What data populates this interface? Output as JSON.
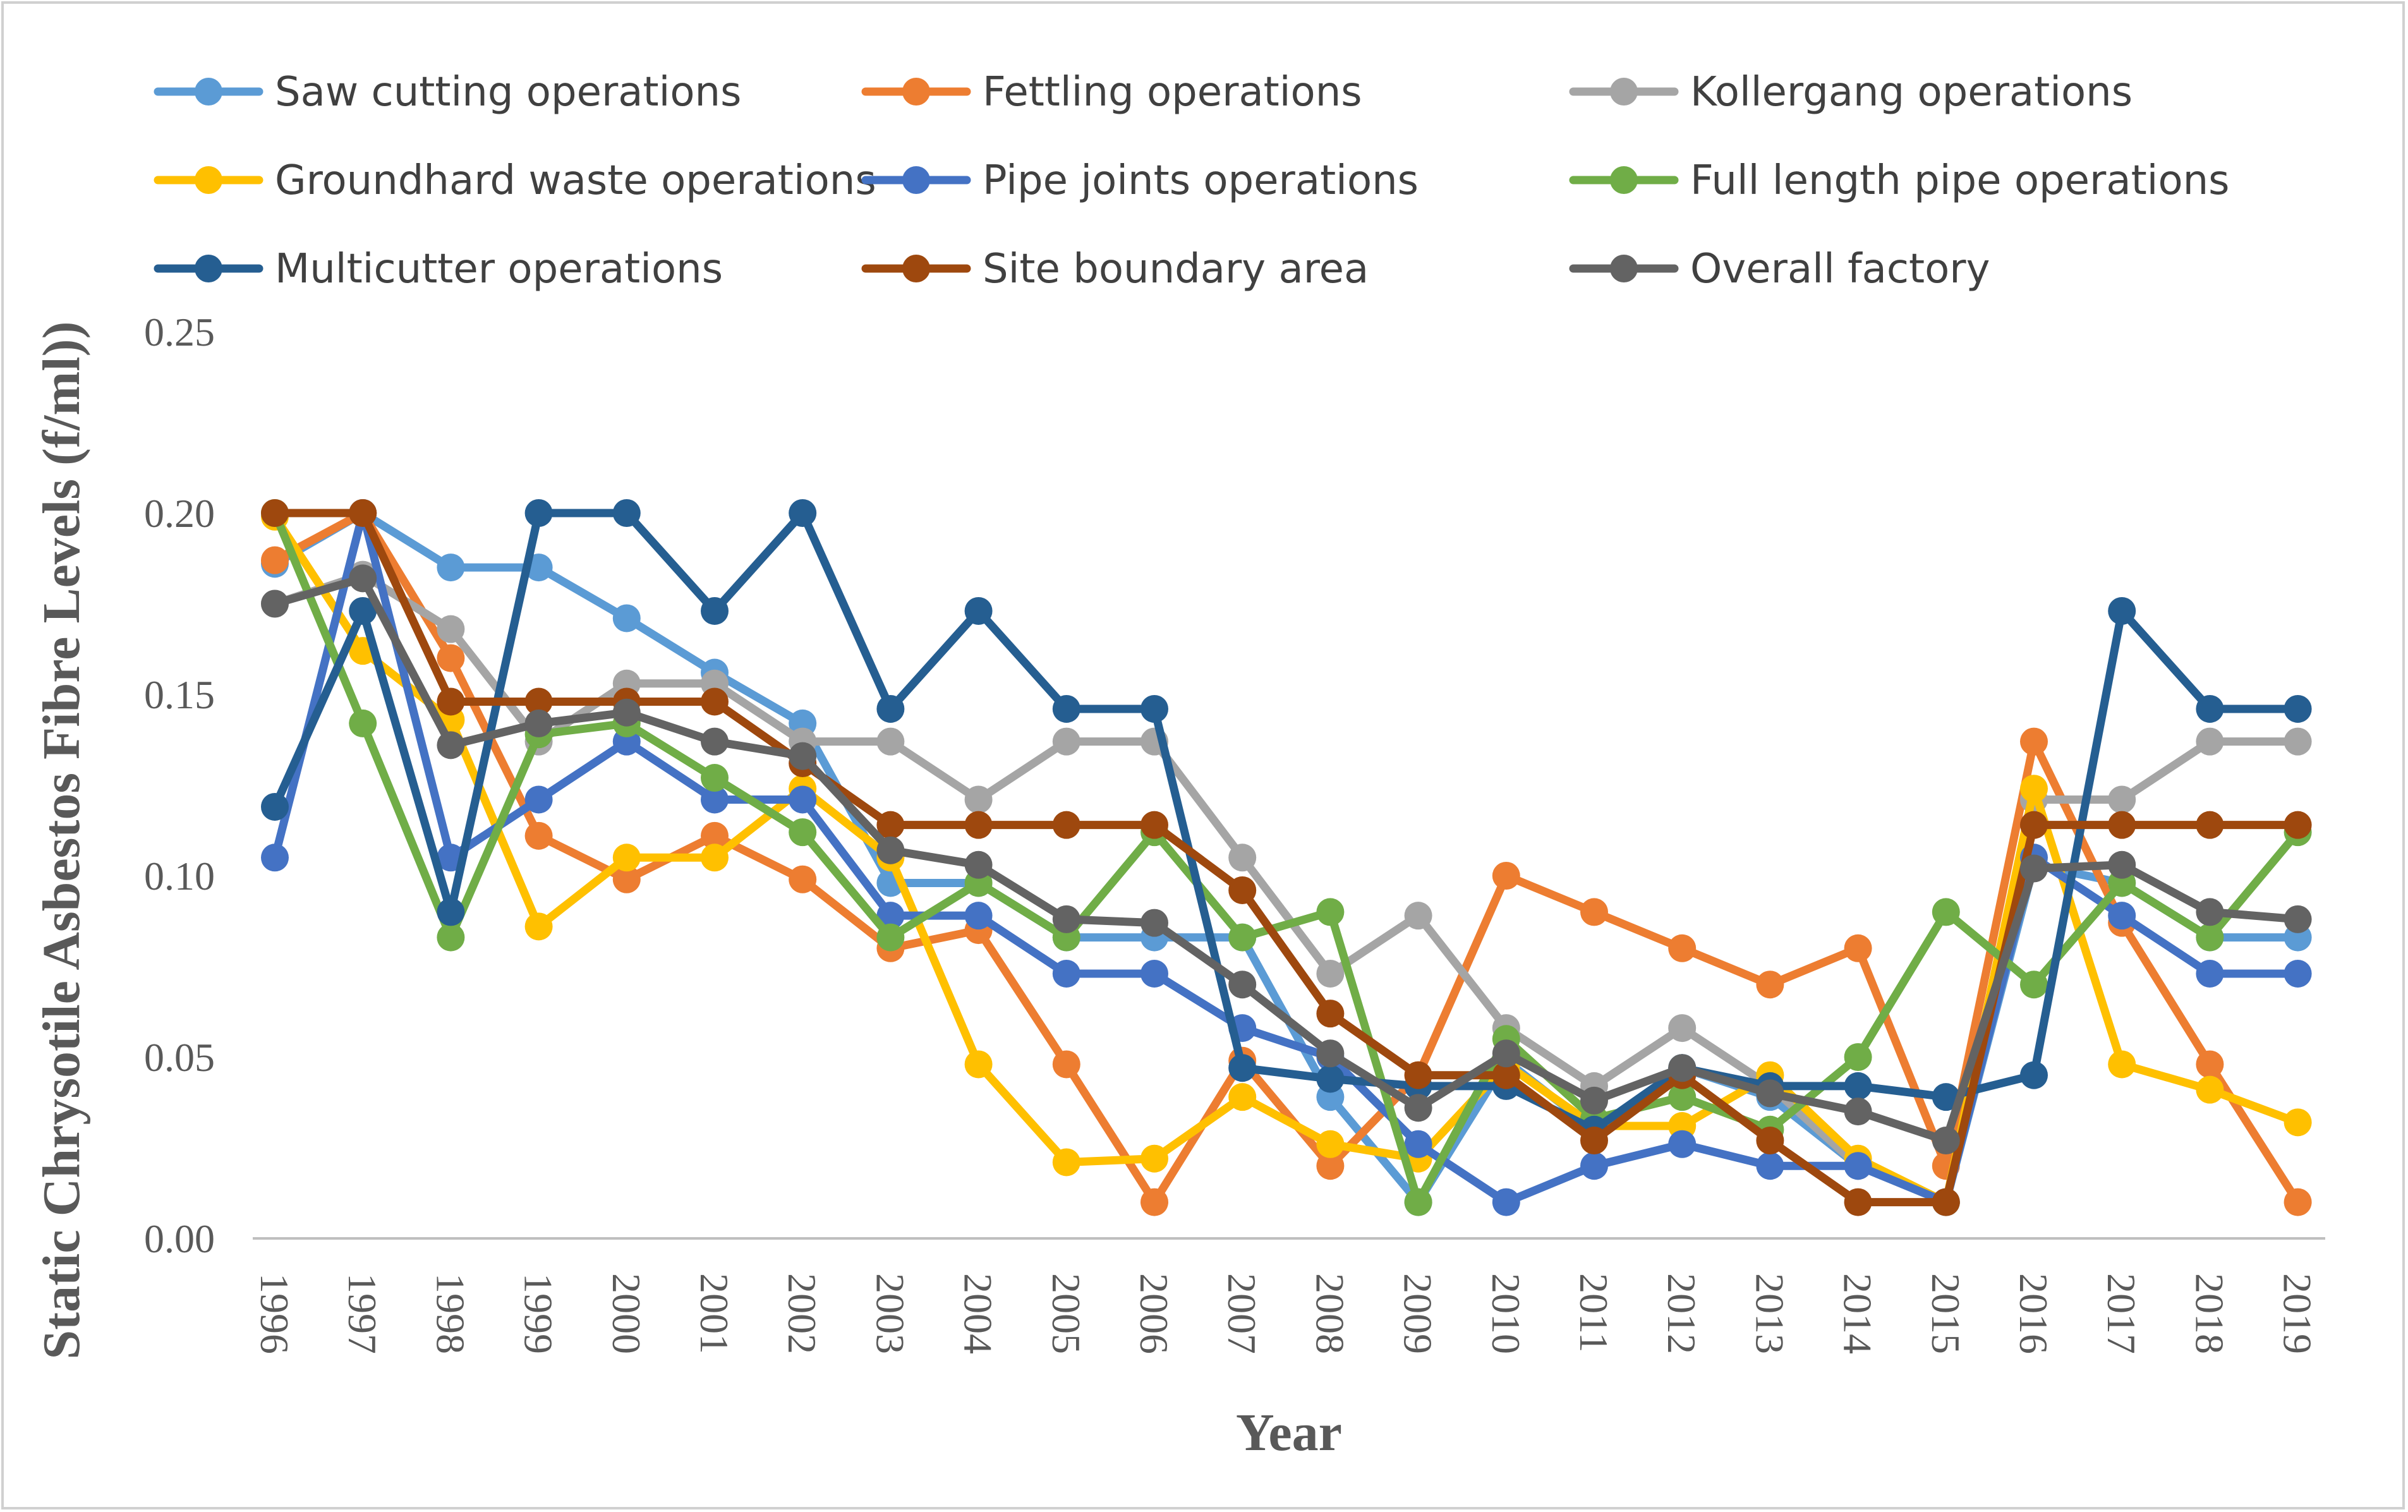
{
  "chart_data": {
    "type": "line",
    "title": "",
    "xlabel": "Year",
    "ylabel": "Static Chrysotile Asbestos Fibre Levels (f/ml))",
    "ylim": [
      0,
      0.25
    ],
    "yticks": [
      "0.00",
      "0.05",
      "0.10",
      "0.15",
      "0.20",
      "0.25"
    ],
    "grid": false,
    "legend_position": "top",
    "categories": [
      "1996",
      "1997",
      "1998",
      "1999",
      "2000",
      "2001",
      "2002",
      "2003",
      "2004",
      "2005",
      "2006",
      "2007",
      "2008",
      "2009",
      "2010",
      "2011",
      "2012",
      "2013",
      "2014",
      "2015",
      "2016",
      "2017",
      "2018",
      "2019"
    ],
    "series": [
      {
        "name": "Saw cutting operations",
        "color": "#5B9BD5",
        "values": [
          0.186,
          0.2,
          0.185,
          0.185,
          0.171,
          0.156,
          0.142,
          0.098,
          0.098,
          0.083,
          0.083,
          0.083,
          0.039,
          0.01,
          0.049,
          0.03,
          0.047,
          0.039,
          0.02,
          0.01,
          0.103,
          0.098,
          0.083,
          0.083
        ]
      },
      {
        "name": "Fettling operations",
        "color": "#ED7D31",
        "values": [
          0.187,
          0.2,
          0.16,
          0.111,
          0.099,
          0.111,
          0.099,
          0.08,
          0.085,
          0.048,
          0.01,
          0.049,
          0.02,
          0.045,
          0.1,
          0.09,
          0.08,
          0.07,
          0.08,
          0.02,
          0.137,
          0.087,
          0.048,
          0.01
        ]
      },
      {
        "name": "Kollergang operations",
        "color": "#A5A5A5",
        "values": [
          0.175,
          0.183,
          0.168,
          0.137,
          0.153,
          0.153,
          0.137,
          0.137,
          0.121,
          0.137,
          0.137,
          0.105,
          0.073,
          0.089,
          0.058,
          0.042,
          0.058,
          0.042,
          0.02,
          0.01,
          0.121,
          0.121,
          0.137,
          0.137
        ]
      },
      {
        "name": "Groundhard waste operations",
        "color": "#FFC000",
        "values": [
          0.199,
          0.162,
          0.143,
          0.086,
          0.105,
          0.105,
          0.124,
          0.105,
          0.048,
          0.021,
          0.022,
          0.039,
          0.026,
          0.022,
          0.048,
          0.031,
          0.031,
          0.045,
          0.022,
          0.01,
          0.124,
          0.048,
          0.041,
          0.032
        ]
      },
      {
        "name": "Pipe joints operations",
        "color": "#4472C4",
        "values": [
          0.105,
          0.2,
          0.105,
          0.121,
          0.137,
          0.121,
          0.121,
          0.089,
          0.089,
          0.073,
          0.073,
          0.058,
          0.05,
          0.026,
          0.01,
          0.02,
          0.026,
          0.02,
          0.02,
          0.01,
          0.105,
          0.089,
          0.073,
          0.073
        ]
      },
      {
        "name": "Full length pipe operations",
        "color": "#70AD47",
        "values": [
          0.2,
          0.142,
          0.083,
          0.139,
          0.142,
          0.127,
          0.112,
          0.083,
          0.098,
          0.083,
          0.112,
          0.083,
          0.09,
          0.01,
          0.055,
          0.033,
          0.039,
          0.03,
          0.05,
          0.09,
          0.07,
          0.098,
          0.083,
          0.112
        ]
      },
      {
        "name": "Multicutter operations",
        "color": "#255E91",
        "values": [
          0.119,
          0.173,
          0.09,
          0.2,
          0.2,
          0.173,
          0.2,
          0.146,
          0.173,
          0.146,
          0.146,
          0.047,
          0.044,
          0.042,
          0.042,
          0.03,
          0.047,
          0.042,
          0.042,
          0.039,
          0.045,
          0.173,
          0.146,
          0.146
        ]
      },
      {
        "name": "Site boundary area",
        "color": "#9E480E",
        "values": [
          0.2,
          0.2,
          0.148,
          0.148,
          0.148,
          0.148,
          0.131,
          0.114,
          0.114,
          0.114,
          0.114,
          0.096,
          0.062,
          0.045,
          0.045,
          0.027,
          0.045,
          0.027,
          0.01,
          0.01,
          0.114,
          0.114,
          0.114,
          0.114
        ]
      },
      {
        "name": "Overall factory",
        "color": "#636363",
        "values": [
          0.175,
          0.182,
          0.136,
          0.142,
          0.145,
          0.137,
          0.133,
          0.107,
          0.103,
          0.088,
          0.087,
          0.07,
          0.051,
          0.036,
          0.051,
          0.038,
          0.047,
          0.04,
          0.035,
          0.027,
          0.102,
          0.103,
          0.09,
          0.088
        ]
      }
    ]
  }
}
